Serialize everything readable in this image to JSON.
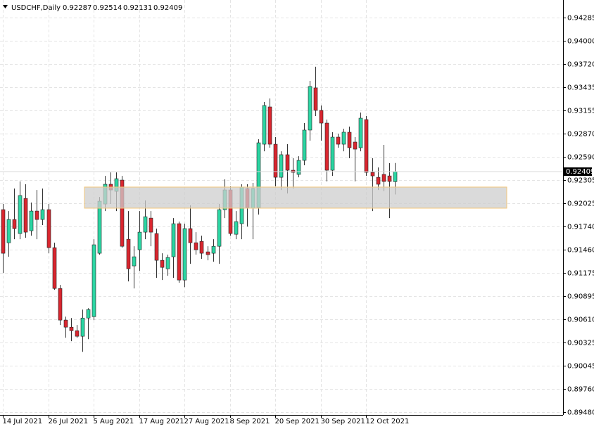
{
  "chart_data": {
    "type": "candlestick",
    "title": "USDCHF,Daily",
    "categories": [
      "14 Jul 2021",
      null,
      null,
      null,
      null,
      null,
      null,
      null,
      "26 Jul 2021",
      null,
      null,
      null,
      null,
      null,
      null,
      null,
      "5 Aug 2021",
      null,
      null,
      null,
      null,
      null,
      null,
      null,
      "17 Aug 2021",
      null,
      null,
      null,
      null,
      null,
      null,
      null,
      "27 Aug 2021",
      null,
      null,
      null,
      null,
      null,
      null,
      null,
      "8 Sep 2021",
      null,
      null,
      null,
      null,
      null,
      null,
      null,
      "20 Sep 2021",
      null,
      null,
      null,
      null,
      null,
      null,
      null,
      "30 Sep 2021",
      null,
      null,
      null,
      null,
      null,
      null,
      null,
      "12 Oct 2021",
      null,
      null,
      null,
      null,
      null
    ],
    "open": [
      0.91946,
      0.91543,
      0.91826,
      0.91655,
      0.92083,
      0.91689,
      0.91929,
      0.91826,
      0.91946,
      0.91483,
      0.90986,
      0.90601,
      0.90515,
      0.90472,
      0.90404,
      0.90626,
      0.90643,
      0.91415,
      0.92015,
      0.92255,
      0.92169,
      0.92306,
      0.91586,
      0.91261,
      0.91458,
      0.91672,
      0.91843,
      0.91655,
      0.91329,
      0.91226,
      0.91372,
      0.91775,
      0.91089,
      0.91715,
      0.91543,
      0.9156,
      0.91432,
      0.91415,
      0.915,
      0.91946,
      0.92186,
      0.91646,
      0.91775,
      0.92203,
      0.91963,
      0.91972,
      0.92743,
      0.93197,
      0.92743,
      0.9234,
      0.92615,
      0.92426,
      0.92375,
      0.92546,
      0.92915,
      0.93429,
      0.93155,
      0.93,
      0.92426,
      0.92829,
      0.92743,
      0.92889,
      0.92769,
      0.927,
      0.93043,
      0.924,
      0.9234,
      0.92375,
      0.92357,
      0.92287
    ],
    "high": [
      0.92015,
      0.91929,
      0.92203,
      0.92289,
      0.92255,
      0.92032,
      0.92186,
      0.92203,
      0.92015,
      0.91543,
      0.91029,
      0.90643,
      0.90626,
      0.90541,
      0.90729,
      0.90746,
      0.91586,
      0.921,
      0.92357,
      0.924,
      0.924,
      0.92357,
      0.91929,
      0.915,
      0.91929,
      0.92058,
      0.91929,
      0.91715,
      0.91415,
      0.91398,
      0.91843,
      0.918,
      0.91775,
      0.91998,
      0.91672,
      0.91629,
      0.915,
      0.91586,
      0.92015,
      0.92315,
      0.92229,
      0.91929,
      0.92255,
      0.92255,
      0.92272,
      0.92803,
      0.93257,
      0.933,
      0.92829,
      0.92657,
      0.92743,
      0.92572,
      0.92597,
      0.93,
      0.93514,
      0.93686,
      0.93214,
      0.93043,
      0.92889,
      0.92872,
      0.92932,
      0.92957,
      0.92829,
      0.93129,
      0.93086,
      0.92572,
      0.9246,
      0.92735,
      0.92512,
      0.92514
    ],
    "low": [
      0.91175,
      0.91372,
      0.91586,
      0.91586,
      0.91603,
      0.91629,
      0.91586,
      0.91758,
      0.91415,
      0.90969,
      0.90541,
      0.90386,
      0.90344,
      0.90386,
      0.90215,
      0.90369,
      0.90601,
      0.91398,
      0.91929,
      0.92015,
      0.91929,
      0.91483,
      0.91072,
      0.90986,
      0.91201,
      0.91586,
      0.915,
      0.91115,
      0.91089,
      0.91141,
      0.91115,
      0.91055,
      0.91003,
      0.91286,
      0.91398,
      0.91346,
      0.91329,
      0.91312,
      0.91286,
      0.91843,
      0.91629,
      0.91586,
      0.91586,
      0.9174,
      0.91586,
      0.91886,
      0.92657,
      0.927,
      0.92229,
      0.92186,
      0.92143,
      0.92203,
      0.9234,
      0.92486,
      0.92786,
      0.93086,
      0.92786,
      0.92289,
      0.92357,
      0.927,
      0.92657,
      0.92572,
      0.92289,
      0.92657,
      0.92357,
      0.91929,
      0.92186,
      0.92169,
      0.91843,
      0.92131
    ],
    "close": [
      0.91415,
      0.91826,
      0.91715,
      0.92118,
      0.91672,
      0.91929,
      0.91826,
      0.91946,
      0.91483,
      0.90986,
      0.90601,
      0.90515,
      0.90472,
      0.90404,
      0.90626,
      0.90729,
      0.91518,
      0.92049,
      0.92255,
      0.92186,
      0.92323,
      0.915,
      0.91226,
      0.91372,
      0.91672,
      0.9186,
      0.91672,
      0.91329,
      0.91243,
      0.91363,
      0.91775,
      0.91089,
      0.91715,
      0.91543,
      0.91458,
      0.91415,
      0.91398,
      0.915,
      0.91946,
      0.92186,
      0.91655,
      0.918,
      0.9222,
      0.91972,
      0.92203,
      0.9276,
      0.93214,
      0.92743,
      0.9234,
      0.92615,
      0.92426,
      0.924,
      0.92546,
      0.92915,
      0.93446,
      0.93155,
      0.93,
      0.92426,
      0.92829,
      0.92743,
      0.92889,
      0.927,
      0.92683,
      0.9306,
      0.924,
      0.92357,
      0.92255,
      0.92289,
      0.92289,
      0.92409
    ],
    "up_color": "#2bd6a3",
    "down_color": "#d9262f",
    "ylim": [
      0.89446,
      0.94499
    ],
    "yticks": [
      0.94285,
      {
        "value": 0.94,
        "label": "0.94000"
      },
      {
        "value": 0.9372,
        "label": "0.93720"
      },
      0.93435,
      0.93155,
      {
        "value": 0.9287,
        "label": "0.92870"
      },
      {
        "value": 0.9259,
        "label": "0.92590"
      },
      0.92305,
      0.92025,
      {
        "value": 0.9174,
        "label": "0.91740"
      },
      {
        "value": 0.9146,
        "label": "0.91460"
      },
      0.91175,
      0.90895,
      {
        "value": 0.9061,
        "label": "0.90610"
      },
      0.90325,
      0.90045,
      {
        "value": 0.8976,
        "label": "0.89760"
      },
      {
        "value": 0.8948,
        "label": "0.89480"
      }
    ],
    "grid": true,
    "zone": {
      "low": 0.91964,
      "high": 0.92221
    }
  }
}
